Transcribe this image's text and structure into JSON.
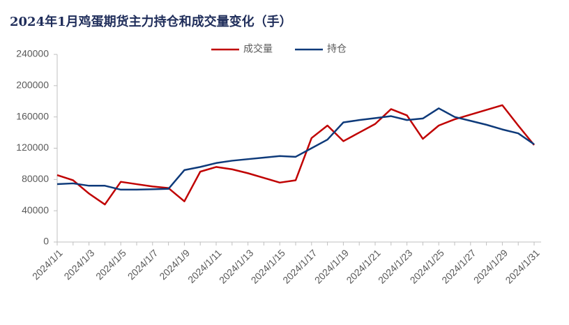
{
  "chart_data": {
    "type": "line",
    "title": "2024年1月鸡蛋期货主力持仓和成交量变化（手）",
    "categories": [
      "2024/1/1",
      null,
      "2024/1/3",
      null,
      "2024/1/5",
      null,
      "2024/1/7",
      null,
      "2024/1/9",
      null,
      "2024/1/11",
      null,
      "2024/1/13",
      null,
      "2024/1/15",
      null,
      "2024/1/17",
      null,
      "2024/1/19",
      null,
      "2024/1/21",
      null,
      "2024/1/23",
      null,
      "2024/1/25",
      null,
      "2024/1/27",
      null,
      "2024/1/29",
      null,
      "2024/1/31"
    ],
    "series": [
      {
        "name": "成交量",
        "color": "#c00000",
        "values": [
          85600,
          79000,
          62000,
          48000,
          77000,
          74000,
          71000,
          69000,
          52000,
          90000,
          96000,
          93000,
          88000,
          82000,
          76000,
          79000,
          133000,
          149000,
          129000,
          140000,
          151000,
          170000,
          162000,
          132000,
          149000,
          157000,
          163000,
          169000,
          175000,
          149000,
          124000
        ]
      },
      {
        "name": "持仓",
        "color": "#0e3a7a",
        "values": [
          74000,
          75000,
          72000,
          72000,
          67000,
          67000,
          67500,
          68000,
          92000,
          96000,
          101000,
          104000,
          106000,
          108000,
          110000,
          109000,
          120000,
          131000,
          153000,
          156000,
          158500,
          161000,
          156000,
          158000,
          171000,
          160000,
          155000,
          150000,
          144000,
          139000,
          125000
        ]
      }
    ],
    "ylim": [
      0,
      240000
    ],
    "yticks": [
      0,
      40000,
      80000,
      120000,
      160000,
      200000,
      240000
    ],
    "grid": false,
    "legend": "top"
  }
}
